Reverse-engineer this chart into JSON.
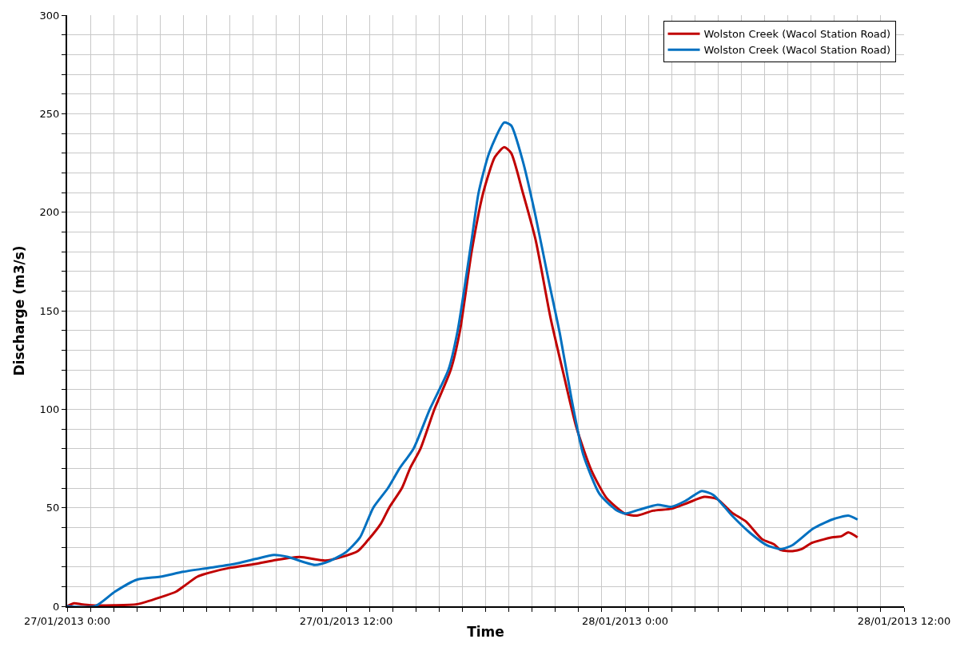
{
  "chart_data": {
    "type": "line",
    "xlabel": "Time",
    "ylabel": "Discharge (m3/s)",
    "series": [
      {
        "name": "Wolston Creek (Wacol Station Road)",
        "color": "#c00000",
        "x": [
          "2013-01-27T00:00",
          "2013-01-27T00:18",
          "2013-01-27T00:36",
          "2013-01-27T01:00",
          "2013-01-27T02:00",
          "2013-01-27T03:00",
          "2013-01-27T04:00",
          "2013-01-27T04:42",
          "2013-01-27T05:00",
          "2013-01-27T05:36",
          "2013-01-27T06:06",
          "2013-01-27T07:00",
          "2013-01-27T08:06",
          "2013-01-27T09:00",
          "2013-01-27T10:00",
          "2013-01-27T11:06",
          "2013-01-27T11:48",
          "2013-01-27T12:30",
          "2013-01-27T12:54",
          "2013-01-27T13:30",
          "2013-01-27T13:51",
          "2013-01-27T14:24",
          "2013-01-27T14:45",
          "2013-01-27T15:12",
          "2013-01-27T15:48",
          "2013-01-27T16:30",
          "2013-01-27T16:54",
          "2013-01-27T17:24",
          "2013-01-27T17:54",
          "2013-01-27T18:24",
          "2013-01-27T18:48",
          "2013-01-27T19:06",
          "2013-01-27T19:36",
          "2013-01-27T20:09",
          "2013-01-27T20:48",
          "2013-01-27T21:21",
          "2013-01-27T21:54",
          "2013-01-27T22:33",
          "2013-01-27T23:12",
          "2013-01-28T00:00",
          "2013-01-28T00:30",
          "2013-01-28T01:12",
          "2013-01-28T02:00",
          "2013-01-28T02:42",
          "2013-01-28T03:24",
          "2013-01-28T03:57",
          "2013-01-28T04:36",
          "2013-01-28T05:12",
          "2013-01-28T05:54",
          "2013-01-28T06:24",
          "2013-01-28T06:42",
          "2013-01-28T07:12",
          "2013-01-28T07:36",
          "2013-01-28T08:00",
          "2013-01-28T08:24",
          "2013-01-28T08:54",
          "2013-01-28T09:18",
          "2013-01-28T09:36",
          "2013-01-28T10:00"
        ],
        "values": [
          0,
          1.5,
          1,
          0.5,
          0.5,
          1,
          4.5,
          7.5,
          10,
          15,
          17,
          19.5,
          21.5,
          23.5,
          25,
          23.2,
          25,
          28,
          33,
          42,
          50,
          60,
          70,
          80,
          100,
          120,
          140,
          180,
          210,
          228,
          233,
          230,
          210,
          186,
          146,
          118,
          91,
          69,
          55,
          47,
          46,
          48.5,
          49.5,
          52.5,
          55.5,
          54.5,
          47.5,
          43,
          34,
          31.5,
          28.5,
          28,
          29,
          32,
          33.5,
          35,
          35.5,
          37.5,
          35
        ]
      },
      {
        "name": "Wolston Creek (Wacol Station Road)",
        "color": "#0070c0",
        "x": [
          "2013-01-27T00:00",
          "2013-01-27T01:12",
          "2013-01-27T02:04",
          "2013-01-27T03:00",
          "2013-01-27T04:00",
          "2013-01-27T05:00",
          "2013-01-27T06:06",
          "2013-01-27T07:12",
          "2013-01-27T08:06",
          "2013-01-27T08:54",
          "2013-01-27T09:30",
          "2013-01-27T10:39",
          "2013-01-27T11:18",
          "2013-01-27T12:00",
          "2013-01-27T12:36",
          "2013-01-27T13:10",
          "2013-01-27T13:48",
          "2013-01-27T14:18",
          "2013-01-27T14:54",
          "2013-01-27T15:36",
          "2013-01-27T16:24",
          "2013-01-27T16:48",
          "2013-01-27T17:24",
          "2013-01-27T17:42",
          "2013-01-27T18:09",
          "2013-01-27T18:48",
          "2013-01-27T19:06",
          "2013-01-27T19:36",
          "2013-01-27T20:09",
          "2013-01-27T20:42",
          "2013-01-27T21:12",
          "2013-01-27T21:42",
          "2013-01-27T22:12",
          "2013-01-27T22:54",
          "2013-01-27T23:36",
          "2013-01-28T00:00",
          "2013-01-28T00:36",
          "2013-01-28T01:24",
          "2013-01-28T02:00",
          "2013-01-28T02:36",
          "2013-01-28T03:18",
          "2013-01-28T03:48",
          "2013-01-28T04:36",
          "2013-01-28T05:24",
          "2013-01-28T06:06",
          "2013-01-28T06:42",
          "2013-01-28T07:12",
          "2013-01-28T08:06",
          "2013-01-28T08:54",
          "2013-01-28T09:36",
          "2013-01-28T10:00"
        ],
        "values": [
          0,
          0,
          7.5,
          13.5,
          15,
          17.5,
          19.5,
          21.5,
          24,
          26,
          25,
          21,
          23,
          27.5,
          35,
          50,
          60,
          70,
          80,
          100,
          120,
          140,
          186,
          210,
          230,
          245.5,
          244,
          226,
          198,
          166,
          138,
          105,
          77,
          57,
          49,
          47,
          49,
          51.5,
          50.5,
          53.5,
          58.5,
          56.5,
          46,
          37,
          31,
          29,
          31,
          39.5,
          44,
          46,
          44
        ]
      }
    ],
    "xlim": [
      "2013-01-27T00:00",
      "2013-01-28T12:00"
    ],
    "xticks": [
      {
        "value": "2013-01-27T00:00",
        "label": "27/01/2013 0:00"
      },
      {
        "value": "2013-01-27T01:00",
        "label": null
      },
      {
        "value": "2013-01-27T02:00",
        "label": null
      },
      {
        "value": "2013-01-27T03:00",
        "label": null
      },
      {
        "value": "2013-01-27T04:00",
        "label": null
      },
      {
        "value": "2013-01-27T05:00",
        "label": null
      },
      {
        "value": "2013-01-27T06:00",
        "label": null
      },
      {
        "value": "2013-01-27T07:00",
        "label": null
      },
      {
        "value": "2013-01-27T08:00",
        "label": null
      },
      {
        "value": "2013-01-27T09:00",
        "label": null
      },
      {
        "value": "2013-01-27T10:00",
        "label": null
      },
      {
        "value": "2013-01-27T11:00",
        "label": null
      },
      {
        "value": "2013-01-27T12:00",
        "label": "27/01/2013 12:00"
      },
      {
        "value": "2013-01-27T13:00",
        "label": null
      },
      {
        "value": "2013-01-27T14:00",
        "label": null
      },
      {
        "value": "2013-01-27T15:00",
        "label": null
      },
      {
        "value": "2013-01-27T16:00",
        "label": null
      },
      {
        "value": "2013-01-27T17:00",
        "label": null
      },
      {
        "value": "2013-01-27T18:00",
        "label": null
      },
      {
        "value": "2013-01-27T19:00",
        "label": null
      },
      {
        "value": "2013-01-27T20:00",
        "label": null
      },
      {
        "value": "2013-01-27T21:00",
        "label": null
      },
      {
        "value": "2013-01-27T22:00",
        "label": null
      },
      {
        "value": "2013-01-27T23:00",
        "label": null
      },
      {
        "value": "2013-01-28T00:00",
        "label": "28/01/2013 0:00"
      },
      {
        "value": "2013-01-28T01:00",
        "label": null
      },
      {
        "value": "2013-01-28T02:00",
        "label": null
      },
      {
        "value": "2013-01-28T03:00",
        "label": null
      },
      {
        "value": "2013-01-28T04:00",
        "label": null
      },
      {
        "value": "2013-01-28T05:00",
        "label": null
      },
      {
        "value": "2013-01-28T06:00",
        "label": null
      },
      {
        "value": "2013-01-28T07:00",
        "label": null
      },
      {
        "value": "2013-01-28T08:00",
        "label": null
      },
      {
        "value": "2013-01-28T09:00",
        "label": null
      },
      {
        "value": "2013-01-28T10:00",
        "label": null
      },
      {
        "value": "2013-01-28T11:00",
        "label": null
      },
      {
        "value": "2013-01-28T12:00",
        "label": "28/01/2013 12:00"
      }
    ],
    "ylim": [
      0,
      300
    ],
    "yticks": [
      0,
      {
        "value": 10,
        "label": null
      },
      {
        "value": 20,
        "label": null
      },
      {
        "value": 30,
        "label": null
      },
      {
        "value": 40,
        "label": null
      },
      50,
      {
        "value": 60,
        "label": null
      },
      {
        "value": 70,
        "label": null
      },
      {
        "value": 80,
        "label": null
      },
      {
        "value": 90,
        "label": null
      },
      100,
      {
        "value": 110,
        "label": null
      },
      {
        "value": 120,
        "label": null
      },
      {
        "value": 130,
        "label": null
      },
      {
        "value": 140,
        "label": null
      },
      150,
      {
        "value": 160,
        "label": null
      },
      {
        "value": 170,
        "label": null
      },
      {
        "value": 180,
        "label": null
      },
      {
        "value": 190,
        "label": null
      },
      200,
      {
        "value": 210,
        "label": null
      },
      {
        "value": 220,
        "label": null
      },
      {
        "value": 230,
        "label": null
      },
      {
        "value": 240,
        "label": null
      },
      250,
      {
        "value": 260,
        "label": null
      },
      {
        "value": 270,
        "label": null
      },
      {
        "value": 280,
        "label": null
      },
      {
        "value": 290,
        "label": null
      },
      300
    ],
    "grid": true,
    "legend": "top right",
    "marker": "none",
    "line_style": "solid"
  }
}
